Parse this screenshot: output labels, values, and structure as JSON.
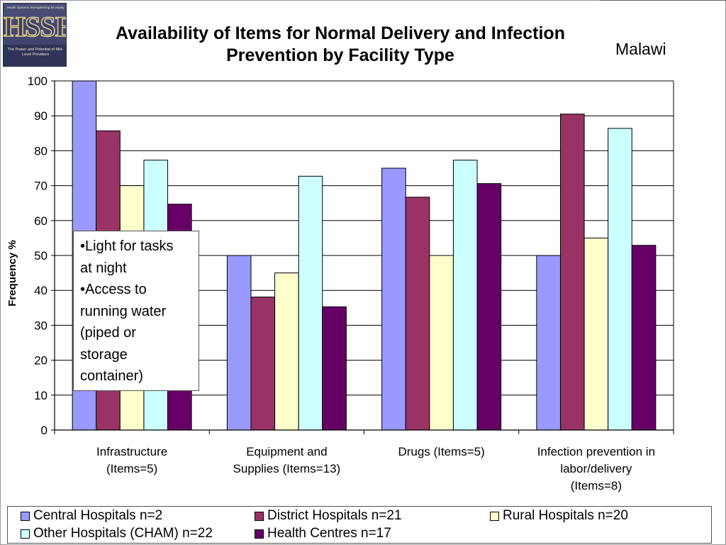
{
  "logo": {
    "wordmark": "HSSE",
    "tagline_top": "Health Systems Strengthening for Equity",
    "tagline_bottom": "The Power and Potential of Mid-Level Providers"
  },
  "title": "Availability of Items for Normal Delivery and Infection Prevention by Facility Type",
  "country": "Malawi",
  "annotation": {
    "lines": [
      "•Light for tasks\nat night",
      "•Access to\nrunning water\n(piped or\nstorage\ncontainer)"
    ]
  },
  "chart_data": {
    "type": "bar",
    "title": "Availability of Items for Normal Delivery and Infection Prevention by Facility Type",
    "ylabel": "Frequency %",
    "xlabel": "",
    "ylim": [
      0,
      100
    ],
    "yticks": [
      0,
      10,
      20,
      30,
      40,
      50,
      60,
      70,
      80,
      90,
      100
    ],
    "grid": true,
    "legend_position": "bottom",
    "categories": [
      "Infrastructure (Items=5)",
      "Equipment and Supplies (Items=13)",
      "Drugs (Items=5)",
      "Infection prevention in labor/delivery (Items=8)"
    ],
    "category_label_lines": [
      [
        "Infrastructure",
        "(Items=5)"
      ],
      [
        "Equipment and",
        "Supplies (Items=13)"
      ],
      [
        "Drugs (Items=5)"
      ],
      [
        "Infection prevention in",
        "labor/delivery",
        "(Items=8)"
      ]
    ],
    "series": [
      {
        "name": "Central Hospitals n=2",
        "color": "#9999ff",
        "values": [
          100,
          50,
          75,
          50
        ]
      },
      {
        "name": "District Hospitals n=21",
        "color": "#993366",
        "values": [
          85.7,
          38.1,
          66.7,
          90.5
        ]
      },
      {
        "name": "Rural Hospitals n=20",
        "color": "#ffffcc",
        "values": [
          70,
          45,
          50,
          55
        ]
      },
      {
        "name": "Other Hospitals (CHAM) n=22",
        "color": "#ccffff",
        "values": [
          77.3,
          72.7,
          77.3,
          86.4
        ]
      },
      {
        "name": "Health Centres n=17",
        "color": "#660066",
        "values": [
          64.7,
          35.3,
          70.6,
          52.9
        ]
      }
    ]
  }
}
